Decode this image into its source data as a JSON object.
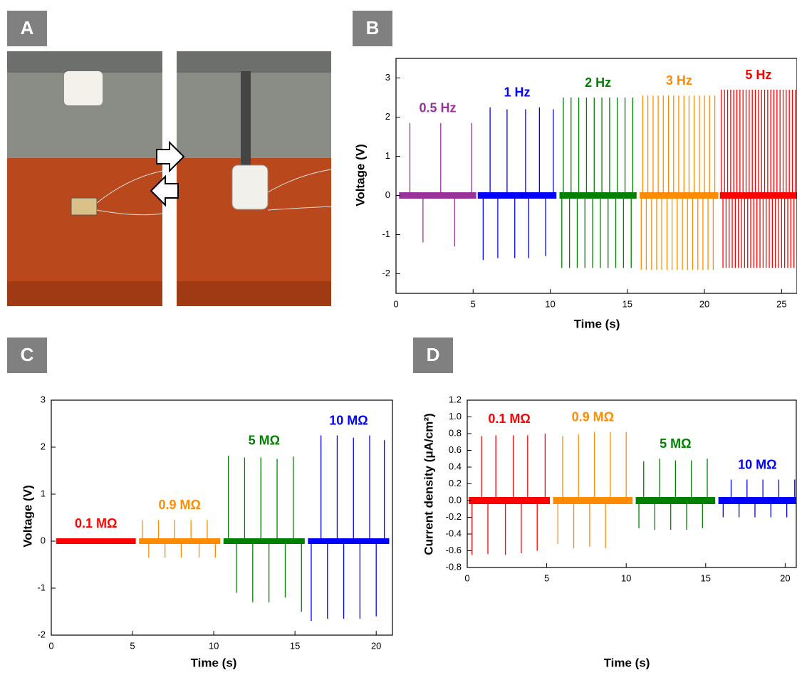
{
  "panel_labels": [
    "A",
    "B",
    "C",
    "D"
  ],
  "chart_data": [
    {
      "type": "spike",
      "xlabel": "Time (s)",
      "ylabel": "Voltage (V)",
      "xlim": [
        0,
        26
      ],
      "ylim": [
        -2.5,
        3.5
      ],
      "xticks": [
        0,
        5,
        10,
        15,
        20,
        25
      ],
      "yticks": [
        -2,
        -1,
        0,
        1,
        2,
        3
      ],
      "series": [
        {
          "name": "0.5 Hz",
          "color": "#993399",
          "x": [
            0.2,
            0.9,
            1.75,
            2.9,
            3.8,
            4.9,
            5.2
          ],
          "values": [
            0,
            1.85,
            -1.2,
            1.85,
            -1.3,
            1.85,
            0
          ]
        },
        {
          "name": "1 Hz",
          "color": "#0000ff",
          "x": [
            5.3,
            5.65,
            6.1,
            6.6,
            7.2,
            7.7,
            8.4,
            8.6,
            9.3,
            9.7,
            10.2,
            10.4
          ],
          "values": [
            0,
            -1.65,
            2.25,
            -1.6,
            2.2,
            -1.6,
            2.2,
            -1.6,
            2.25,
            -1.55,
            2.2,
            0
          ]
        },
        {
          "name": "2 Hz",
          "color": "#008000",
          "x": [
            10.6,
            10.75,
            10.85,
            11.25,
            11.35,
            11.75,
            11.85,
            12.25,
            12.35,
            12.75,
            12.85,
            13.25,
            13.35,
            13.75,
            13.85,
            14.25,
            14.35,
            14.75,
            14.85,
            15.25,
            15.35,
            15.6
          ],
          "values": [
            0,
            -1.85,
            2.5,
            -1.85,
            2.5,
            -1.85,
            2.5,
            -1.85,
            2.5,
            -1.85,
            2.5,
            -1.85,
            2.5,
            -1.85,
            2.5,
            -1.85,
            2.5,
            -1.85,
            2.5,
            -1.85,
            2.5,
            0
          ]
        },
        {
          "name": "3 Hz",
          "color": "#ff8c00",
          "x": [
            15.8,
            15.9,
            16.0,
            16.23,
            16.33,
            16.57,
            16.67,
            16.9,
            17.0,
            17.23,
            17.33,
            17.57,
            17.67,
            17.9,
            18.0,
            18.23,
            18.33,
            18.57,
            18.67,
            18.9,
            19.0,
            19.23,
            19.33,
            19.57,
            19.67,
            19.9,
            20.0,
            20.23,
            20.33,
            20.57,
            20.67,
            20.9
          ],
          "values": [
            0,
            -1.9,
            2.55,
            -1.9,
            2.55,
            -1.9,
            2.55,
            -1.9,
            2.55,
            -1.9,
            2.55,
            -1.9,
            2.55,
            -1.9,
            2.55,
            -1.9,
            2.55,
            -1.9,
            2.55,
            -1.9,
            2.55,
            -1.9,
            2.55,
            -1.9,
            2.55,
            -1.9,
            2.55,
            -1.9,
            2.55,
            -1.9,
            2.55,
            0
          ]
        },
        {
          "name": "5 Hz",
          "color": "#ff0000",
          "x": [
            21.0,
            21.1,
            21.2,
            21.3,
            21.4,
            21.5,
            21.6,
            21.7,
            21.8,
            21.9,
            22.0,
            22.1,
            22.2,
            22.3,
            22.4,
            22.5,
            22.6,
            22.7,
            22.8,
            22.9,
            23.0,
            23.1,
            23.2,
            23.3,
            23.4,
            23.5,
            23.6,
            23.7,
            23.8,
            23.9,
            24.0,
            24.1,
            24.2,
            24.3,
            24.4,
            24.5,
            24.6,
            24.7,
            24.8,
            24.9,
            25.0,
            25.1,
            25.2,
            25.3,
            25.4,
            25.5,
            25.6,
            25.7,
            25.8,
            25.9,
            26.0
          ],
          "values": [
            0,
            2.7,
            -1.85,
            2.7,
            -1.85,
            2.7,
            -1.85,
            2.7,
            -1.85,
            2.7,
            -1.85,
            2.7,
            -1.85,
            2.7,
            -1.85,
            2.7,
            -1.85,
            2.7,
            -1.85,
            2.7,
            -1.85,
            2.7,
            -1.85,
            2.7,
            -1.85,
            2.7,
            -1.85,
            2.7,
            -1.85,
            2.7,
            -1.85,
            2.7,
            -1.85,
            2.7,
            -1.85,
            2.7,
            -1.85,
            2.7,
            -1.85,
            2.7,
            -1.85,
            2.7,
            -1.85,
            2.7,
            -1.85,
            2.7,
            -1.85,
            2.7,
            -1.85,
            2.7,
            0
          ]
        }
      ]
    },
    {
      "type": "spike",
      "xlabel": "Time (s)",
      "ylabel": "Voltage (V)",
      "xlim": [
        0,
        21
      ],
      "ylim": [
        -2,
        3
      ],
      "xticks": [
        0,
        5,
        10,
        15,
        20
      ],
      "yticks": [
        -2,
        -1,
        0,
        1,
        2,
        3
      ],
      "series": [
        {
          "name": "0.1 MΩ",
          "color": "#ff0000",
          "x": [
            0.3,
            0.9,
            1.4,
            1.9,
            2.4,
            2.9,
            3.4,
            3.9,
            4.4,
            4.9,
            5.2
          ],
          "values": [
            0,
            0.06,
            -0.04,
            0.06,
            -0.04,
            0.06,
            -0.04,
            0.06,
            -0.04,
            0.06,
            0
          ]
        },
        {
          "name": "0.9 MΩ",
          "color": "#ff8c00",
          "x": [
            5.4,
            5.6,
            6.0,
            6.6,
            7.0,
            7.6,
            8.0,
            8.6,
            9.1,
            9.6,
            10.1,
            10.4
          ],
          "values": [
            0,
            0.45,
            -0.35,
            0.45,
            -0.35,
            0.45,
            -0.35,
            0.45,
            -0.35,
            0.45,
            -0.35,
            0
          ]
        },
        {
          "name": "5 MΩ",
          "color": "#008000",
          "x": [
            10.6,
            10.9,
            11.4,
            11.9,
            12.4,
            12.9,
            13.4,
            13.9,
            14.4,
            14.9,
            15.4,
            15.6
          ],
          "values": [
            0,
            1.82,
            -1.1,
            1.78,
            -1.3,
            1.78,
            -1.3,
            1.75,
            -1.2,
            1.8,
            -1.5,
            0
          ]
        },
        {
          "name": "10 MΩ",
          "color": "#0000ff",
          "x": [
            15.8,
            16.0,
            16.6,
            17.0,
            17.6,
            18.0,
            18.6,
            19.0,
            19.6,
            20.0,
            20.5,
            20.8
          ],
          "values": [
            0,
            -1.7,
            2.25,
            -1.65,
            2.25,
            -1.65,
            2.2,
            -1.65,
            2.25,
            -1.6,
            2.15,
            0
          ]
        }
      ]
    },
    {
      "type": "spike",
      "xlabel": "Time (s)",
      "ylabel": "Current density (μA/cm²)",
      "xlim": [
        0,
        20.7
      ],
      "ylim": [
        -0.8,
        1.2
      ],
      "xticks": [
        0,
        5,
        10,
        15,
        20
      ],
      "yticks": [
        -0.8,
        -0.6,
        -0.4,
        -0.2,
        {
          "value": 0,
          "label": "0.0"
        },
        0.2,
        0.4,
        0.6,
        0.8,
        {
          "value": 1,
          "label": "1.0"
        },
        1.2
      ],
      "series": [
        {
          "name": "0.1 MΩ",
          "color": "#ff0000",
          "x": [
            0.1,
            0.3,
            0.9,
            1.3,
            1.8,
            2.4,
            2.9,
            3.4,
            3.8,
            4.4,
            4.9,
            5.2
          ],
          "values": [
            0,
            -0.65,
            0.77,
            -0.64,
            0.78,
            -0.65,
            0.78,
            -0.63,
            0.78,
            -0.6,
            0.8,
            0
          ]
        },
        {
          "name": "0.9 MΩ",
          "color": "#ff8c00",
          "x": [
            5.4,
            5.7,
            6.0,
            6.7,
            7.0,
            7.7,
            8.0,
            8.7,
            9.0,
            10.0,
            10.4
          ],
          "values": [
            0,
            -0.52,
            0.77,
            -0.57,
            0.79,
            -0.55,
            0.82,
            -0.57,
            0.82,
            0.82,
            0
          ]
        },
        {
          "name": "5 MΩ",
          "color": "#008000",
          "x": [
            10.6,
            10.8,
            11.1,
            11.8,
            12.1,
            12.8,
            13.1,
            13.8,
            14.1,
            14.8,
            15.1,
            15.6
          ],
          "values": [
            0,
            -0.33,
            0.47,
            -0.35,
            0.5,
            -0.35,
            0.48,
            -0.35,
            0.48,
            -0.33,
            0.5,
            0
          ]
        },
        {
          "name": "10 MΩ",
          "color": "#0000ff",
          "x": [
            15.8,
            16.1,
            16.6,
            17.1,
            17.6,
            18.1,
            18.6,
            19.1,
            19.6,
            20.1,
            20.6,
            20.7
          ],
          "values": [
            0,
            -0.2,
            0.25,
            -0.2,
            0.25,
            -0.2,
            0.25,
            -0.2,
            0.25,
            -0.2,
            0.25,
            0
          ]
        }
      ]
    }
  ]
}
